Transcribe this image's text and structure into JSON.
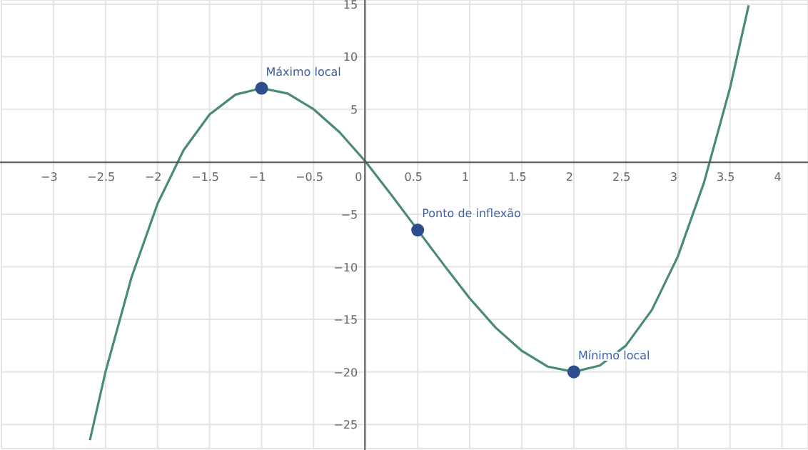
{
  "chart_data": {
    "type": "line",
    "xlim": [
      -3.5,
      4.25
    ],
    "ylim": [
      -27.3,
      15.4
    ],
    "xticks": [
      -3,
      -2.5,
      -2,
      -1.5,
      -1,
      -0.5,
      0,
      0.5,
      1,
      1.5,
      2,
      2.5,
      3,
      3.5,
      4
    ],
    "yticks": [
      -25,
      -20,
      -15,
      -10,
      -5,
      5,
      10,
      15
    ],
    "grid": true,
    "legend": false,
    "marker": "none",
    "line_style": "solid",
    "series": [
      {
        "color": "#4a8a78",
        "x": [
          -2.65,
          -2.5,
          -2.25,
          -2,
          -1.75,
          -1.5,
          -1.25,
          -1,
          -0.75,
          -0.5,
          -0.25,
          0,
          0.25,
          0.5,
          0.75,
          1,
          1.25,
          1.5,
          1.75,
          2,
          2.25,
          2.5,
          2.75,
          3,
          3.25,
          3.5,
          3.68
        ],
        "values": [
          -26.5,
          -20,
          -11,
          -4,
          1.1,
          4.5,
          6.4,
          7,
          6.5,
          5,
          2.8,
          0,
          -3.2,
          -6.5,
          -9.8,
          -13,
          -15.8,
          -18,
          -19.5,
          -20,
          -19.4,
          -17.5,
          -14.1,
          -9,
          -2,
          7,
          14.9
        ]
      },
      {
        "type": "scatter",
        "color": "#2b4f8c",
        "marker": "circle",
        "x": [
          -1,
          0.5,
          2
        ],
        "values": [
          7,
          -6.5,
          -20
        ]
      }
    ],
    "annotations": [
      {
        "text": "Máximo local",
        "x": -1,
        "y": 7
      },
      {
        "text": "Ponto de inflexão",
        "x": 0.5,
        "y": -6.5
      },
      {
        "text": "Mínimo local",
        "x": 2,
        "y": -20
      }
    ]
  }
}
